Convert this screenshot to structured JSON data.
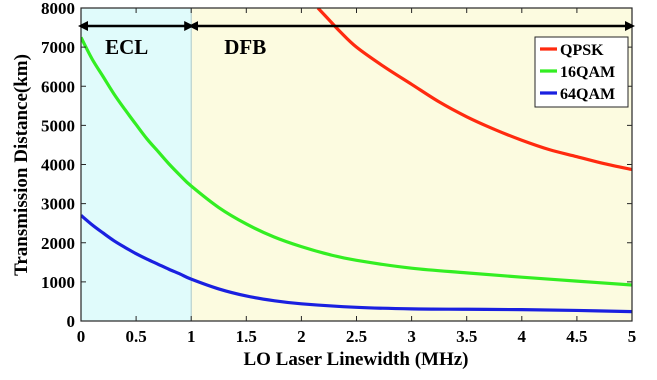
{
  "chart_data": {
    "type": "line",
    "xlabel": "LO Laser Linewidth (MHz)",
    "ylabel": "Transmission Distance(km)",
    "xlim": [
      0,
      5
    ],
    "ylim": [
      0,
      8000
    ],
    "xticks": [
      0,
      0.5,
      1,
      1.5,
      2,
      2.5,
      3,
      3.5,
      4,
      4.5,
      5
    ],
    "xtick_labels": [
      "0",
      "0.5",
      "1",
      "1.5",
      "2",
      "2.5",
      "3",
      "3.5",
      "4",
      "4.5",
      "5"
    ],
    "yticks": [
      0,
      1000,
      2000,
      3000,
      4000,
      5000,
      6000,
      7000,
      8000
    ],
    "ytick_labels": [
      "0",
      "1000",
      "2000",
      "3000",
      "4000",
      "5000",
      "6000",
      "7000",
      "8000"
    ],
    "grid": false,
    "legend_position": "top-right",
    "regions": [
      {
        "label": "ECL",
        "x_range": [
          0,
          1
        ],
        "color": "#e0fbfb"
      },
      {
        "label": "DFB",
        "x_range": [
          1,
          5
        ],
        "color": "#fcfbe0"
      }
    ],
    "series": [
      {
        "name": "QPSK",
        "color": "#ff2a0f",
        "x": [
          2.15,
          2.25,
          2.35,
          2.5,
          2.75,
          3,
          3.25,
          3.5,
          3.75,
          4,
          4.25,
          4.5,
          4.75,
          5
        ],
        "values": [
          8000,
          7700,
          7400,
          7000,
          6500,
          6050,
          5600,
          5220,
          4900,
          4620,
          4380,
          4200,
          4020,
          3870
        ]
      },
      {
        "name": "16QAM",
        "color": "#33ee22",
        "x": [
          0,
          0.1,
          0.2,
          0.3,
          0.4,
          0.5,
          0.6,
          0.7,
          0.8,
          0.9,
          1,
          1.25,
          1.5,
          1.75,
          2,
          2.25,
          2.5,
          3,
          3.5,
          4,
          4.5,
          5
        ],
        "values": [
          7250,
          6700,
          6250,
          5800,
          5400,
          5020,
          4650,
          4330,
          4010,
          3720,
          3450,
          2900,
          2480,
          2150,
          1900,
          1700,
          1550,
          1350,
          1230,
          1120,
          1020,
          920
        ]
      },
      {
        "name": "64QAM",
        "color": "#1a20e0",
        "x": [
          0,
          0.1,
          0.2,
          0.3,
          0.4,
          0.5,
          0.6,
          0.7,
          0.8,
          0.9,
          1,
          1.25,
          1.5,
          1.75,
          2,
          2.5,
          3,
          3.5,
          4,
          4.5,
          5
        ],
        "values": [
          2700,
          2460,
          2250,
          2050,
          1880,
          1720,
          1580,
          1450,
          1320,
          1200,
          1070,
          820,
          640,
          520,
          440,
          350,
          310,
          300,
          290,
          270,
          240
        ]
      }
    ]
  }
}
